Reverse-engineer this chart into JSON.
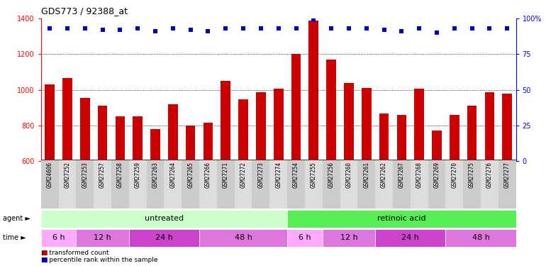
{
  "title": "GDS773 / 92388_at",
  "samples": [
    "GSM24606",
    "GSM27252",
    "GSM27253",
    "GSM27257",
    "GSM27258",
    "GSM27259",
    "GSM27263",
    "GSM27264",
    "GSM27265",
    "GSM27266",
    "GSM27271",
    "GSM27272",
    "GSM27273",
    "GSM27274",
    "GSM27254",
    "GSM27255",
    "GSM27256",
    "GSM27260",
    "GSM27261",
    "GSM27262",
    "GSM27267",
    "GSM27268",
    "GSM27269",
    "GSM27270",
    "GSM27275",
    "GSM27276",
    "GSM27277"
  ],
  "bar_values": [
    1030,
    1065,
    955,
    910,
    852,
    852,
    780,
    920,
    800,
    815,
    1052,
    948,
    985,
    1005,
    1200,
    1390,
    1170,
    1040,
    1010,
    865,
    860,
    1005,
    770,
    860,
    912,
    985,
    980
  ],
  "percentile_values": [
    93,
    93,
    93,
    92,
    92,
    93,
    91,
    93,
    92,
    91,
    93,
    93,
    93,
    93,
    93,
    99,
    93,
    93,
    93,
    92,
    91,
    93,
    90,
    93,
    93,
    93,
    93
  ],
  "bar_color": "#cc0000",
  "dot_color": "#0000cc",
  "ylim_left": [
    600,
    1400
  ],
  "ylim_right": [
    0,
    100
  ],
  "yticks_left": [
    600,
    800,
    1000,
    1200,
    1400
  ],
  "yticks_right": [
    0,
    25,
    50,
    75,
    100
  ],
  "grid_values": [
    800,
    1000,
    1200
  ],
  "agent_groups": [
    {
      "label": "untreated",
      "start": 0,
      "end": 14,
      "color": "#ccffcc"
    },
    {
      "label": "retinoic acid",
      "start": 14,
      "end": 27,
      "color": "#55ee55"
    }
  ],
  "time_groups": [
    {
      "label": "6 h",
      "start": 0,
      "end": 2,
      "color": "#ffaaff"
    },
    {
      "label": "12 h",
      "start": 2,
      "end": 5,
      "color": "#dd77dd"
    },
    {
      "label": "24 h",
      "start": 5,
      "end": 9,
      "color": "#cc44cc"
    },
    {
      "label": "48 h",
      "start": 9,
      "end": 14,
      "color": "#dd77dd"
    },
    {
      "label": "6 h",
      "start": 14,
      "end": 16,
      "color": "#ffaaff"
    },
    {
      "label": "12 h",
      "start": 16,
      "end": 19,
      "color": "#dd77dd"
    },
    {
      "label": "24 h",
      "start": 19,
      "end": 23,
      "color": "#cc44cc"
    },
    {
      "label": "48 h",
      "start": 23,
      "end": 27,
      "color": "#dd77dd"
    }
  ],
  "background_color": "#ffffff",
  "tick_bg_colors": [
    "#cccccc",
    "#dddddd"
  ],
  "legend_items": [
    {
      "label": "transformed count",
      "color": "#cc0000"
    },
    {
      "label": "percentile rank within the sample",
      "color": "#0000cc"
    }
  ]
}
